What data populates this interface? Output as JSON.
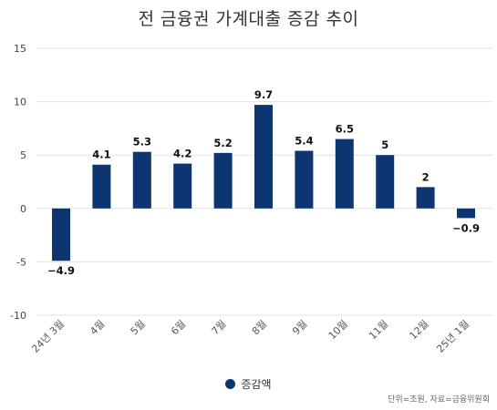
{
  "chart_data": {
    "type": "bar",
    "title": "전 금융권 가계대출 증감 추이",
    "categories": [
      "24년 3월",
      "4월",
      "5월",
      "6월",
      "7월",
      "8월",
      "9월",
      "10월",
      "11월",
      "12월",
      "25년 1월"
    ],
    "series": [
      {
        "name": "증감액",
        "values": [
          -4.9,
          4.1,
          5.3,
          4.2,
          5.2,
          9.7,
          5.4,
          6.5,
          5,
          2,
          -0.9
        ]
      }
    ],
    "data_labels": [
      "-4.9",
      "4.1",
      "5.3",
      "4.2",
      "5.2",
      "9.7",
      "5.4",
      "6.5",
      "5",
      "2",
      "-0.9"
    ],
    "yticks": [
      "15",
      "10",
      "5",
      "0",
      "-5",
      "-10"
    ],
    "ylim": [
      -10,
      15
    ],
    "grid": true,
    "legend": "bottom-center",
    "bar_color": "#0d3572",
    "source": "단위=조원, 자료=금융위원회"
  }
}
